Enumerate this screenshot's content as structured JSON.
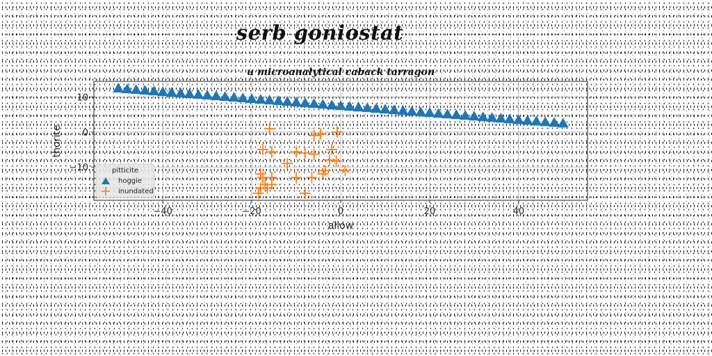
{
  "suptitle": "serb goniostat",
  "chart_data": {
    "type": "scatter",
    "title": "u microanalytical caback tarragon",
    "xlabel": "allow",
    "ylabel": "thorite",
    "xlim": [
      -55.5,
      55.5
    ],
    "ylim": [
      -19.5,
      14.5
    ],
    "xticks": [
      -40,
      -20,
      0,
      20,
      40
    ],
    "yticks": [
      10,
      0,
      -10
    ],
    "grid": true,
    "legend": {
      "title": "pitticite",
      "position": "lower-left"
    },
    "series": [
      {
        "name": "hoggie",
        "marker": "triangle",
        "color": "#1f77b4",
        "x_start": -50,
        "x_end": 50,
        "count": 51,
        "y_start": 12.5,
        "y_end": 2.5
      },
      {
        "name": "inundated",
        "marker": "plus",
        "color": "#ff7f0e",
        "points": [
          [
            -16,
            1
          ],
          [
            -6,
            -1
          ],
          [
            -4.5,
            -0.5
          ],
          [
            -0.8,
            0
          ],
          [
            -17.5,
            -5
          ],
          [
            -15.5,
            -5.7
          ],
          [
            -10,
            -5.7
          ],
          [
            -8,
            -6
          ],
          [
            -6,
            -6.3
          ],
          [
            -2,
            -5
          ],
          [
            -12,
            -9
          ],
          [
            -2.5,
            -8
          ],
          [
            -1,
            -8.3
          ],
          [
            -18,
            -12
          ],
          [
            -17.5,
            -13
          ],
          [
            -15.5,
            -13
          ],
          [
            -10,
            -13
          ],
          [
            -6.5,
            -13
          ],
          [
            -4,
            -12
          ],
          [
            -3.5,
            -11
          ],
          [
            1,
            -11
          ],
          [
            -18,
            -16
          ],
          [
            -17,
            -15
          ],
          [
            -16.5,
            -16
          ],
          [
            -15.5,
            -15
          ],
          [
            -18.5,
            -17.5
          ],
          [
            -8,
            -17.5
          ]
        ]
      }
    ]
  }
}
